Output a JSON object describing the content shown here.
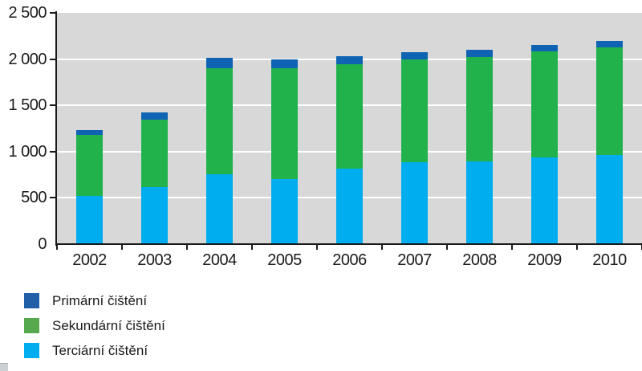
{
  "chart_data": {
    "type": "bar",
    "stacked": true,
    "title": "",
    "xlabel": "",
    "ylabel": "",
    "categories": [
      "2002",
      "2003",
      "2004",
      "2005",
      "2006",
      "2007",
      "2008",
      "2009",
      "2010"
    ],
    "series": [
      {
        "name": "Primární čištění",
        "color": "#0e64b2",
        "legend_color": "#2160a9",
        "values": [
          55,
          75,
          105,
          95,
          85,
          75,
          80,
          70,
          65
        ]
      },
      {
        "name": "Sekundární čištění",
        "color": "#22b24c",
        "legend_color": "#57a94e",
        "values": [
          660,
          730,
          1150,
          1200,
          1130,
          1115,
          1130,
          1145,
          1170
        ]
      },
      {
        "name": "Terciární čištění",
        "color": "#00adee",
        "legend_color": "#00adee",
        "values": [
          520,
          615,
          755,
          705,
          815,
          885,
          895,
          940,
          960
        ]
      }
    ],
    "stack_order_bottom_to_top": [
      2,
      1,
      0
    ],
    "totals": [
      1235,
      1420,
      2010,
      2000,
      2030,
      2075,
      2105,
      2155,
      2195
    ],
    "y_axis": {
      "min": 0,
      "max": 2500,
      "tick_interval": 500,
      "tick_labels": [
        "0",
        "500",
        "1 000",
        "1 500",
        "2 000",
        "2 500"
      ]
    },
    "grid": true,
    "gridline_color": "#ffffff",
    "plot_background": "#d8d8d8",
    "axis_color": "#1a1a1a",
    "legend_position": "bottom-left"
  }
}
